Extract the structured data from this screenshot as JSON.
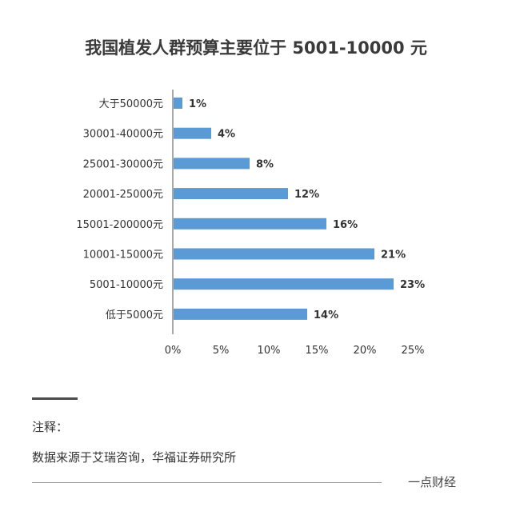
{
  "chart_data": {
    "type": "bar",
    "orientation": "horizontal",
    "title": "我国植发人群预算主要位于 5001-10000 元",
    "categories": [
      "大于50000元",
      "30001-40000元",
      "25001-30000元",
      "20001-25000元",
      "15001-200000元",
      "10001-15000元",
      "5001-10000元",
      "低于5000元"
    ],
    "values": [
      1,
      4,
      8,
      12,
      16,
      21,
      23,
      14
    ],
    "value_labels": [
      "1%",
      "4%",
      "8%",
      "12%",
      "16%",
      "21%",
      "23%",
      "14%"
    ],
    "xlim": [
      0,
      25
    ],
    "xticks": [
      0,
      5,
      10,
      15,
      20,
      25
    ],
    "xtick_labels": [
      "0%",
      "5%",
      "10%",
      "15%",
      "20%",
      "25%"
    ],
    "bar_color": "#5b9bd5",
    "grid": false
  },
  "footer": {
    "note_label": "注释：",
    "source": "数据来源于艾瑞咨询，华福证券研究所",
    "brand": "一点财经"
  }
}
